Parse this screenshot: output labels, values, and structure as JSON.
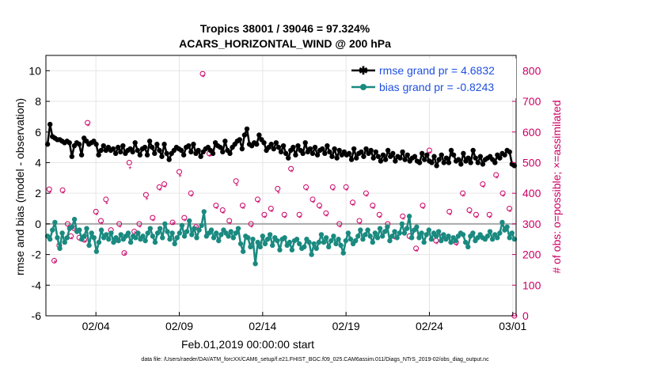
{
  "chart_data": {
    "type": "line",
    "title": "Tropics 38001 / 39046 = 97.324%",
    "subtitle": "ACARS_HORIZONTAL_WIND @ 200 hPa",
    "xlabel": "Feb.01,2019 00:00:00 start",
    "ylabel": "rmse and bias (model - observation)",
    "y2label": "# of obs: o=possible; ×=assimilated",
    "x_range_days": [
      0,
      28.2
    ],
    "xticks": [
      {
        "day": 3,
        "label": "02/04"
      },
      {
        "day": 8,
        "label": "02/09"
      },
      {
        "day": 13,
        "label": "02/14"
      },
      {
        "day": 18,
        "label": "02/19"
      },
      {
        "day": 23,
        "label": "02/24"
      },
      {
        "day": 28,
        "label": "03/01"
      }
    ],
    "ylim": [
      -6,
      11
    ],
    "yticks": [
      -6,
      -4,
      -2,
      0,
      2,
      4,
      6,
      8,
      10
    ],
    "y2lim": [
      0,
      850
    ],
    "y2ticks": [
      0,
      100,
      200,
      300,
      400,
      500,
      600,
      700,
      800
    ],
    "grid": true,
    "legend_position": "top-right",
    "series": [
      {
        "name": "rmse grand pr = 4.6832",
        "axis": "left",
        "color": "#000000",
        "values": [
          5.2,
          6.5,
          5.7,
          5.6,
          5.5,
          5.5,
          5.4,
          5.3,
          5.4,
          5.3,
          4.4,
          5.1,
          5.3,
          5.2,
          4.5,
          5.6,
          5.4,
          5.2,
          5.3,
          5.4,
          5.2,
          4.5,
          4.8,
          5.1,
          4.8,
          5.0,
          4.8,
          4.9,
          4.6,
          5.0,
          4.7,
          5.1,
          4.6,
          4.8,
          4.9,
          4.7,
          5.3,
          4.8,
          4.5,
          4.9,
          5.0,
          4.5,
          5.4,
          5.0,
          4.6,
          5.2,
          4.8,
          4.4,
          5.2,
          4.6,
          4.2,
          4.6,
          4.8,
          5.0,
          4.9,
          4.8,
          4.5,
          5.0,
          5.1,
          4.7,
          5.2,
          4.6,
          4.8,
          4.4,
          4.7,
          4.9,
          5.0,
          4.8,
          4.6,
          5.3,
          5.1,
          5.0,
          4.7,
          5.4,
          4.8,
          4.6,
          5.0,
          5.2,
          5.4,
          5.5,
          4.9,
          5.8,
          6.2,
          5.2,
          5.1,
          5.3,
          5.2,
          5.8,
          5.5,
          5.3,
          4.8,
          5.0,
          5.2,
          4.9,
          5.3,
          5.0,
          4.7,
          5.1,
          4.6,
          4.3,
          4.8,
          5.0,
          4.5,
          5.1,
          4.8,
          4.6,
          5.3,
          4.7,
          4.9,
          4.6,
          5.0,
          4.5,
          4.8,
          4.9,
          4.6,
          5.1,
          4.7,
          4.4,
          4.9,
          4.3,
          4.8,
          4.5,
          4.7,
          4.5,
          4.6,
          4.2,
          4.9,
          4.3,
          4.6,
          4.7,
          4.4,
          4.9,
          4.6,
          4.8,
          4.3,
          4.7,
          4.4,
          4.1,
          4.5,
          4.2,
          4.8,
          4.4,
          4.6,
          4.1,
          4.4,
          4.3,
          4.7,
          4.2,
          4.5,
          4.1,
          4.3,
          4.4,
          4.1,
          4.0,
          4.6,
          4.2,
          4.5,
          4.1,
          4.0,
          4.4,
          3.8,
          4.2,
          4.5,
          4.0,
          4.3,
          4.0,
          4.8,
          4.5,
          4.1,
          4.2,
          3.9,
          4.6,
          4.1,
          4.3,
          4.0,
          4.8,
          4.3,
          4.0,
          4.4,
          3.9,
          4.2,
          4.3,
          4.4,
          4.2,
          4.0,
          4.5,
          4.3,
          4.6,
          4.5,
          4.8,
          4.7,
          3.9,
          3.8
        ]
      },
      {
        "name": "bias grand pr = -0.8243",
        "axis": "left",
        "color": "#1a8a80",
        "values": [
          -0.8,
          -1.0,
          -0.4,
          0.1,
          -0.9,
          -1.6,
          -0.6,
          -1.2,
          -0.9,
          -0.3,
          -0.2,
          0.3,
          -0.5,
          -0.4,
          -1.0,
          -0.8,
          -0.3,
          -1.4,
          -0.6,
          -0.9,
          -1.8,
          -1.2,
          -0.4,
          -0.9,
          -0.7,
          -1.0,
          -0.6,
          -1.2,
          -0.9,
          -1.1,
          -0.7,
          -1.0,
          -0.8,
          -0.6,
          -1.2,
          -0.8,
          -0.9,
          -0.6,
          -1.0,
          -0.8,
          -1.1,
          -0.6,
          -0.3,
          -0.8,
          -1.2,
          -0.6,
          -0.3,
          -0.9,
          0.0,
          -0.5,
          -1.0,
          -0.6,
          -1.3,
          -0.9,
          -0.6,
          -0.1,
          -0.8,
          -0.5,
          0.2,
          -0.7,
          -0.3,
          -0.9,
          -0.4,
          -0.1,
          0.8,
          -0.8,
          -0.6,
          -0.4,
          -0.9,
          -0.6,
          -1.1,
          -0.7,
          -0.4,
          -0.6,
          -0.8,
          -0.5,
          -0.9,
          -0.6,
          -0.3,
          -1.3,
          -1.8,
          -0.8,
          -0.9,
          -1.5,
          -1.0,
          -2.6,
          -1.2,
          -1.5,
          -0.8,
          -1.3,
          -1.0,
          -0.7,
          -1.4,
          -0.9,
          -1.1,
          -1.7,
          -1.0,
          -0.9,
          -1.4,
          -1.2,
          -1.7,
          -1.1,
          -1.0,
          -1.3,
          -1.6,
          -1.5,
          -1.0,
          -1.2,
          -2.0,
          -1.3,
          -1.6,
          -1.2,
          -0.7,
          -1.2,
          -0.9,
          -1.5,
          -1.1,
          -0.8,
          -1.3,
          -1.0,
          -1.4,
          -1.9,
          -1.1,
          -0.6,
          -1.0,
          -1.3,
          -1.1,
          -0.8,
          -0.4,
          -1.0,
          -0.7,
          -0.4,
          -0.8,
          -1.2,
          -0.6,
          -0.9,
          -0.3,
          -0.8,
          -0.5,
          -0.2,
          -1.1,
          -0.8,
          -0.5,
          -0.9,
          -0.6,
          0.0,
          -0.6,
          -0.3,
          0.5,
          -0.9,
          -0.4,
          -0.2,
          -0.9,
          -0.6,
          -1.2,
          -0.7,
          -0.4,
          -1.0,
          -0.6,
          -0.8,
          -0.5,
          -1.1,
          -0.7,
          -1.0,
          -0.8,
          -1.2,
          -0.9,
          -1.1,
          -0.8,
          -0.6,
          -0.7,
          -1.2,
          -1.5,
          -0.8,
          -0.6,
          -1.1,
          -0.9,
          -0.7,
          -0.9,
          -1.0,
          -0.8,
          -0.5,
          -1.0,
          -0.7,
          -0.9,
          -0.6,
          0.1,
          -0.4,
          -0.2,
          -0.9,
          -0.6,
          -1.0
        ]
      }
    ],
    "obs_possible_points": [
      {
        "day": 0.2,
        "n": 413
      },
      {
        "day": 0.5,
        "n": 180
      },
      {
        "day": 0.8,
        "n": 230
      },
      {
        "day": 1.0,
        "n": 410
      },
      {
        "day": 1.3,
        "n": 300
      },
      {
        "day": 1.5,
        "n": 260
      },
      {
        "day": 1.7,
        "n": 285
      },
      {
        "day": 2.0,
        "n": 255
      },
      {
        "day": 2.3,
        "n": 248
      },
      {
        "day": 2.5,
        "n": 630
      },
      {
        "day": 3.0,
        "n": 340
      },
      {
        "day": 3.3,
        "n": 310
      },
      {
        "day": 3.6,
        "n": 380
      },
      {
        "day": 3.9,
        "n": 280
      },
      {
        "day": 4.2,
        "n": 250
      },
      {
        "day": 4.4,
        "n": 300
      },
      {
        "day": 4.7,
        "n": 205
      },
      {
        "day": 5.0,
        "n": 500
      },
      {
        "day": 5.3,
        "n": 275
      },
      {
        "day": 5.6,
        "n": 300
      },
      {
        "day": 6.0,
        "n": 395
      },
      {
        "day": 6.4,
        "n": 320
      },
      {
        "day": 6.8,
        "n": 420
      },
      {
        "day": 7.1,
        "n": 430
      },
      {
        "day": 7.6,
        "n": 305
      },
      {
        "day": 8.0,
        "n": 470
      },
      {
        "day": 8.3,
        "n": 320
      },
      {
        "day": 8.7,
        "n": 400
      },
      {
        "day": 9.0,
        "n": 290
      },
      {
        "day": 9.4,
        "n": 790
      },
      {
        "day": 9.8,
        "n": 530
      },
      {
        "day": 10.2,
        "n": 360
      },
      {
        "day": 10.6,
        "n": 345
      },
      {
        "day": 11.0,
        "n": 310
      },
      {
        "day": 11.4,
        "n": 440
      },
      {
        "day": 11.8,
        "n": 360
      },
      {
        "day": 12.3,
        "n": 300
      },
      {
        "day": 12.7,
        "n": 380
      },
      {
        "day": 13.1,
        "n": 330
      },
      {
        "day": 13.5,
        "n": 350
      },
      {
        "day": 13.9,
        "n": 415
      },
      {
        "day": 14.3,
        "n": 330
      },
      {
        "day": 14.7,
        "n": 480
      },
      {
        "day": 15.2,
        "n": 330
      },
      {
        "day": 15.6,
        "n": 420
      },
      {
        "day": 16.0,
        "n": 380
      },
      {
        "day": 16.4,
        "n": 360
      },
      {
        "day": 16.8,
        "n": 335
      },
      {
        "day": 17.2,
        "n": 420
      },
      {
        "day": 17.6,
        "n": 300
      },
      {
        "day": 18.0,
        "n": 420
      },
      {
        "day": 18.4,
        "n": 370
      },
      {
        "day": 18.8,
        "n": 310
      },
      {
        "day": 19.2,
        "n": 400
      },
      {
        "day": 19.6,
        "n": 360
      },
      {
        "day": 20.0,
        "n": 330
      },
      {
        "day": 20.5,
        "n": 300
      },
      {
        "day": 20.9,
        "n": 260
      },
      {
        "day": 21.4,
        "n": 325
      },
      {
        "day": 21.8,
        "n": 260
      },
      {
        "day": 22.2,
        "n": 220
      },
      {
        "day": 22.6,
        "n": 360
      },
      {
        "day": 23.0,
        "n": 540
      },
      {
        "day": 23.4,
        "n": 245
      },
      {
        "day": 23.8,
        "n": 260
      },
      {
        "day": 24.2,
        "n": 340
      },
      {
        "day": 24.6,
        "n": 240
      },
      {
        "day": 25.0,
        "n": 400
      },
      {
        "day": 25.4,
        "n": 345
      },
      {
        "day": 25.8,
        "n": 330
      },
      {
        "day": 26.2,
        "n": 430
      },
      {
        "day": 26.6,
        "n": 330
      },
      {
        "day": 27.0,
        "n": 460
      },
      {
        "day": 27.4,
        "n": 400
      },
      {
        "day": 27.8,
        "n": 350
      },
      {
        "day": 28.1,
        "n": 0
      }
    ],
    "obs_assimilated_points": [
      {
        "day": 0.25,
        "n": 400
      },
      {
        "day": 0.55,
        "n": 175
      },
      {
        "day": 0.85,
        "n": 225
      },
      {
        "day": 1.05,
        "n": 400
      },
      {
        "day": 1.35,
        "n": 290
      },
      {
        "day": 1.55,
        "n": 250
      },
      {
        "day": 1.75,
        "n": 280
      },
      {
        "day": 2.05,
        "n": 245
      },
      {
        "day": 2.35,
        "n": 240
      },
      {
        "day": 2.55,
        "n": 620
      },
      {
        "day": 3.05,
        "n": 330
      },
      {
        "day": 3.35,
        "n": 300
      },
      {
        "day": 3.65,
        "n": 365
      },
      {
        "day": 3.95,
        "n": 270
      },
      {
        "day": 4.25,
        "n": 240
      },
      {
        "day": 4.45,
        "n": 290
      },
      {
        "day": 4.75,
        "n": 200
      },
      {
        "day": 5.05,
        "n": 480
      },
      {
        "day": 5.35,
        "n": 270
      },
      {
        "day": 5.65,
        "n": 290
      },
      {
        "day": 6.05,
        "n": 380
      },
      {
        "day": 6.45,
        "n": 310
      },
      {
        "day": 6.85,
        "n": 410
      },
      {
        "day": 7.15,
        "n": 420
      },
      {
        "day": 7.65,
        "n": 300
      },
      {
        "day": 8.05,
        "n": 455
      },
      {
        "day": 8.35,
        "n": 310
      },
      {
        "day": 8.75,
        "n": 390
      },
      {
        "day": 9.05,
        "n": 285
      },
      {
        "day": 9.45,
        "n": 780
      },
      {
        "day": 9.85,
        "n": 520
      },
      {
        "day": 10.25,
        "n": 350
      },
      {
        "day": 10.65,
        "n": 335
      },
      {
        "day": 11.05,
        "n": 300
      },
      {
        "day": 11.45,
        "n": 425
      },
      {
        "day": 11.85,
        "n": 350
      },
      {
        "day": 12.35,
        "n": 290
      },
      {
        "day": 12.75,
        "n": 370
      },
      {
        "day": 13.15,
        "n": 320
      },
      {
        "day": 13.55,
        "n": 340
      },
      {
        "day": 13.95,
        "n": 400
      },
      {
        "day": 14.35,
        "n": 320
      },
      {
        "day": 14.75,
        "n": 470
      },
      {
        "day": 15.25,
        "n": 320
      },
      {
        "day": 15.65,
        "n": 410
      },
      {
        "day": 16.05,
        "n": 370
      },
      {
        "day": 16.45,
        "n": 350
      },
      {
        "day": 16.85,
        "n": 325
      },
      {
        "day": 17.25,
        "n": 410
      },
      {
        "day": 17.65,
        "n": 290
      },
      {
        "day": 18.05,
        "n": 410
      },
      {
        "day": 18.45,
        "n": 360
      },
      {
        "day": 18.85,
        "n": 300
      },
      {
        "day": 19.25,
        "n": 390
      },
      {
        "day": 19.65,
        "n": 350
      },
      {
        "day": 20.05,
        "n": 320
      },
      {
        "day": 20.55,
        "n": 290
      },
      {
        "day": 20.95,
        "n": 250
      },
      {
        "day": 21.45,
        "n": 315
      },
      {
        "day": 21.85,
        "n": 250
      },
      {
        "day": 22.25,
        "n": 210
      },
      {
        "day": 22.65,
        "n": 350
      },
      {
        "day": 23.05,
        "n": 530
      },
      {
        "day": 23.45,
        "n": 235
      },
      {
        "day": 23.85,
        "n": 250
      },
      {
        "day": 24.25,
        "n": 330
      },
      {
        "day": 24.65,
        "n": 230
      },
      {
        "day": 25.05,
        "n": 390
      },
      {
        "day": 25.45,
        "n": 335
      },
      {
        "day": 25.85,
        "n": 320
      },
      {
        "day": 26.25,
        "n": 420
      },
      {
        "day": 26.65,
        "n": 320
      },
      {
        "day": 27.05,
        "n": 450
      },
      {
        "day": 27.45,
        "n": 390
      },
      {
        "day": 27.85,
        "n": 340
      }
    ],
    "legend": [
      {
        "label": "rmse grand pr = 4.6832",
        "color": "#000000"
      },
      {
        "label": "bias grand pr = -0.8243",
        "color": "#1a8a80"
      }
    ],
    "footnote": "data file: /Users/raeder/DAI/ATM_forcXX/CAM6_setup/f.e21.FHIST_BGC.f09_025.CAM6assim.011/Diags_NTrS_2019-02/obs_diag_output.nc",
    "colors": {
      "obs": "#cc0066",
      "zero_line": "#aaaaaa",
      "grid": "#e6e6e6"
    }
  }
}
